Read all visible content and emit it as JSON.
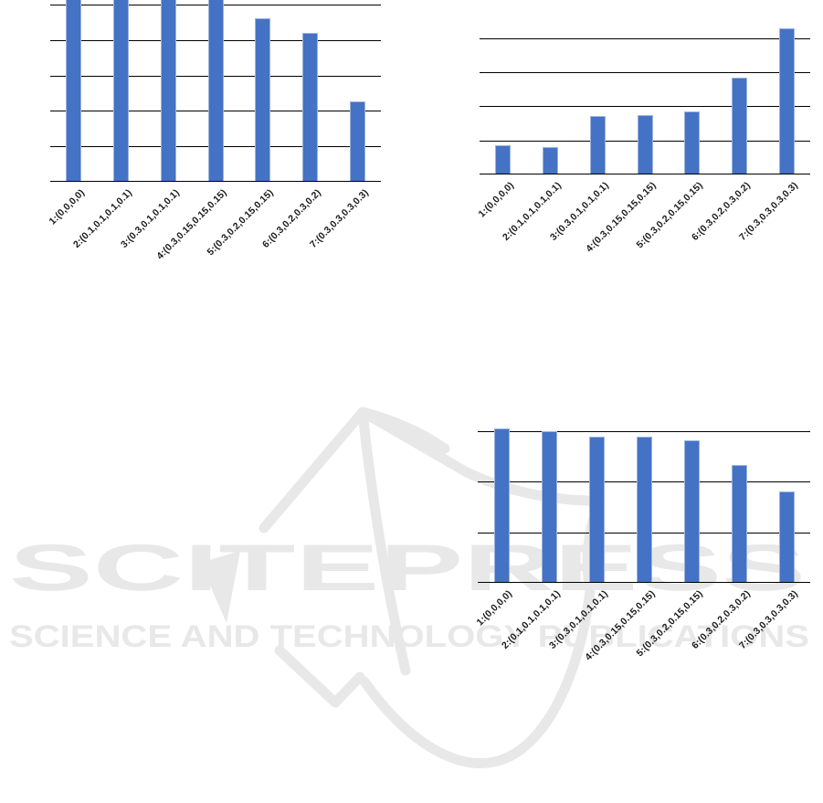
{
  "page": {
    "background_color": "#ffffff"
  },
  "watermark": {
    "brand": "SCITEPRESS",
    "tagline": "SCIENCE AND TECHNOLOGY PUBLICATIONS",
    "color": "#e8e8e8",
    "logo_shape": "open-book-with-swoosh-outline"
  },
  "style": {
    "bar_fill": "#4472c4",
    "bar_border": "#9db4de",
    "gridline_color": "#000000",
    "axis_color": "#000000",
    "label_color": "#1a1a1a"
  },
  "chart_data": [
    {
      "id": "top-left",
      "type": "bar",
      "title": "",
      "xlabel": "",
      "ylabel": "",
      "categories": [
        "1:(0,0,0,0)",
        "2:(0.1,0.1,0.1,0.1)",
        "3:(0.3,0.1,0.1,0.1)",
        "4:(0.3,0.15,0.15,0.15)",
        "5:(0.3,0.2,0.15,0.15)",
        "6:(0.3,0.2,0.3,0.2)",
        "7:(0.3,0.3,0.3,0.3)"
      ],
      "values": [
        5.2,
        5.2,
        5.2,
        5.2,
        4.6,
        4.18,
        2.24
      ],
      "clipped_at_top": [
        true,
        true,
        true,
        true,
        false,
        false,
        false
      ],
      "gridline_levels": [
        1,
        2,
        3,
        4,
        5
      ],
      "ylim": [
        0,
        5.13
      ],
      "grid": true,
      "legend": false,
      "y_tick_labels_visible": false,
      "note": "No y-axis tick labels visible; values expressed in gridline-interval units. Bars 1-4 are cut off by the top edge of the page crop."
    },
    {
      "id": "top-right",
      "type": "bar",
      "title": "",
      "xlabel": "",
      "ylabel": "",
      "categories": [
        "1:(0,0,0,0)",
        "2:(0.1,0.1,0.1,0.1)",
        "3:(0.3,0.1,0.1,0.1)",
        "4:(0.3,0.15,0.15,0.15)",
        "5:(0.3,0.2,0.15,0.15)",
        "6:(0.3,0.2,0.3,0.2)",
        "7:(0.3,0.3,0.3,0.3)"
      ],
      "values": [
        0.82,
        0.79,
        1.68,
        1.72,
        1.83,
        2.82,
        4.27
      ],
      "clipped_at_top": [
        false,
        false,
        false,
        false,
        false,
        false,
        false
      ],
      "gridline_levels": [
        1,
        2,
        3,
        4
      ],
      "ylim": [
        0,
        4.56
      ],
      "grid": true,
      "legend": false,
      "y_tick_labels_visible": false,
      "note": "No y-axis tick labels visible; values expressed in gridline-interval units. Increasing trend, bar 7 rises above the topmost gridline."
    },
    {
      "id": "bottom-right",
      "type": "bar",
      "title": "",
      "xlabel": "",
      "ylabel": "",
      "categories": [
        "1:(0,0,0,0)",
        "2:(0.1,0.1,0.1,0.1)",
        "3:(0.3,0.1,0.1,0.1)",
        "4:(0.3,0.15,0.15,0.15)",
        "5:(0.3,0.2,0.15,0.15)",
        "6:(0.3,0.2,0.3,0.2)",
        "7:(0.3,0.3,0.3,0.3)"
      ],
      "values": [
        3.03,
        2.97,
        2.86,
        2.86,
        2.8,
        2.31,
        1.78
      ],
      "clipped_at_top": [
        false,
        false,
        false,
        false,
        false,
        false,
        false
      ],
      "gridline_levels": [
        1,
        2,
        3
      ],
      "ylim": [
        0,
        3.01
      ],
      "grid": true,
      "legend": false,
      "y_tick_labels_visible": false,
      "note": "No y-axis tick labels visible; values expressed in gridline-interval units. Slowly decreasing trend; bar 1 just touches the topmost gridline."
    }
  ]
}
